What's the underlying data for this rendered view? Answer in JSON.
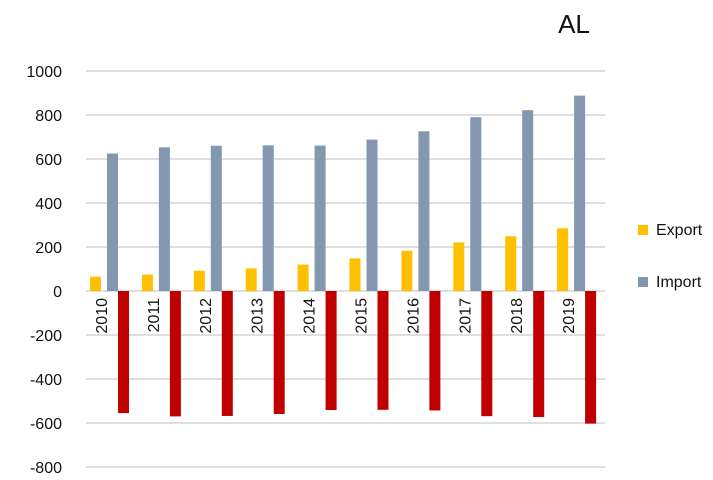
{
  "chart_data": {
    "type": "bar",
    "title": "AL",
    "xlabel": "",
    "ylabel": "",
    "categories": [
      "2010",
      "2011",
      "2012",
      "2013",
      "2014",
      "2015",
      "2016",
      "2017",
      "2018",
      "2019"
    ],
    "series": [
      {
        "name": "Export",
        "color": "#FFC000",
        "values": [
          65,
          75,
          92,
          103,
          120,
          148,
          183,
          221,
          249,
          285
        ]
      },
      {
        "name": "Import",
        "color": "#8497B0",
        "values": [
          625,
          653,
          660,
          662,
          661,
          688,
          726,
          790,
          822,
          888
        ]
      },
      {
        "name": "",
        "color": "#C00000",
        "values": [
          -555,
          -570,
          -568,
          -559,
          -541,
          -540,
          -543,
          -569,
          -573,
          -603
        ]
      }
    ],
    "ylim": [
      -800,
      1000
    ],
    "yticks": [
      "-800",
      "-600",
      "-400",
      "-200",
      "0",
      "200",
      "400",
      "600",
      "800",
      "1000"
    ],
    "grid": true,
    "legend_position": "right"
  }
}
